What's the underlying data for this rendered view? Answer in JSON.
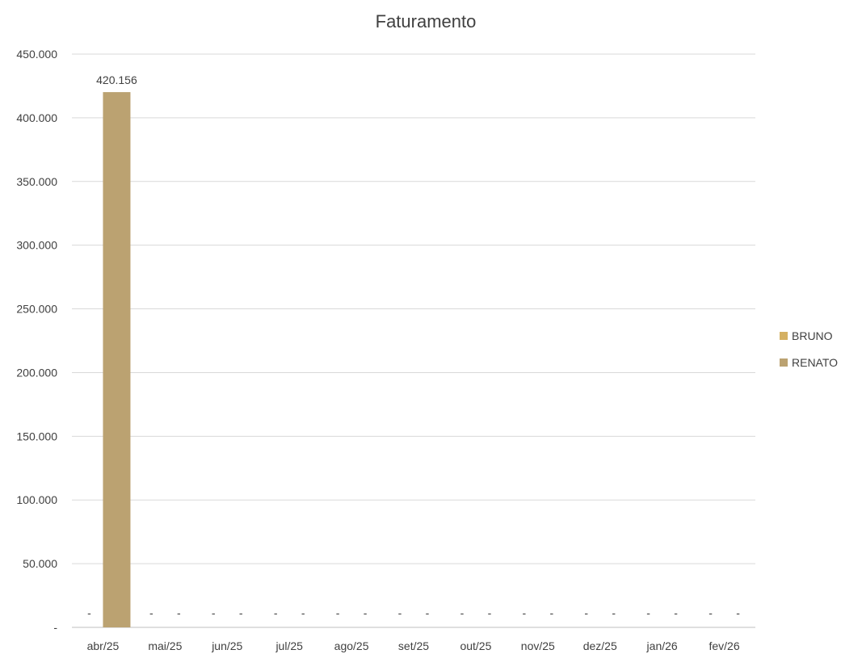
{
  "chart_data": {
    "type": "bar",
    "title": "Faturamento",
    "categories": [
      "abr/25",
      "mai/25",
      "jun/25",
      "jul/25",
      "ago/25",
      "set/25",
      "out/25",
      "nov/25",
      "dez/25",
      "jan/26",
      "fev/26"
    ],
    "series": [
      {
        "name": "BRUNO",
        "color": "#D4B062",
        "values": [
          0,
          0,
          0,
          0,
          0,
          0,
          0,
          0,
          0,
          0,
          0
        ],
        "labels": [
          "-",
          "-",
          "-",
          "-",
          "-",
          "-",
          "-",
          "-",
          "-",
          "-",
          "-"
        ]
      },
      {
        "name": "RENATO",
        "color": "#BBA271",
        "values": [
          420156,
          0,
          0,
          0,
          0,
          0,
          0,
          0,
          0,
          0,
          0
        ],
        "labels": [
          "420.156",
          "-",
          "-",
          "-",
          "-",
          "-",
          "-",
          "-",
          "-",
          "-",
          "-"
        ]
      }
    ],
    "yticks": [
      "-",
      "50.000",
      "100.000",
      "150.000",
      "200.000",
      "250.000",
      "300.000",
      "350.000",
      "400.000",
      "450.000"
    ],
    "ylim": [
      0,
      450000
    ],
    "xlabel": "",
    "ylabel": "",
    "grid": true,
    "legend_position": "right"
  }
}
